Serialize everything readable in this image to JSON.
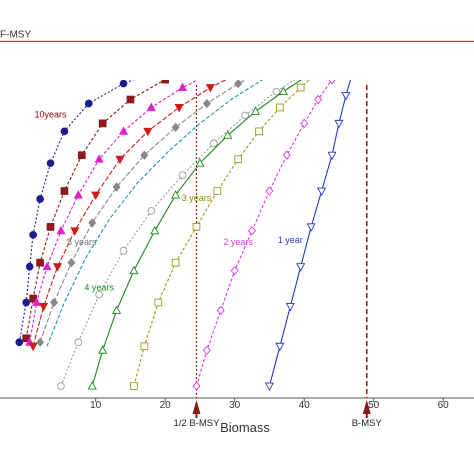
{
  "chart_data": {
    "type": "line",
    "xlabel": "Biomass",
    "ylabel": "",
    "xlim": [
      -2,
      64
    ],
    "xticks": [
      10,
      20,
      30,
      40,
      50,
      60
    ],
    "reference_lines": {
      "fmsy_label": "F-MSY",
      "half_bmsy_label": "1/2 B-MSY",
      "half_bmsy_x": 24.5,
      "bmsy_label": "B-MSY",
      "bmsy_x": 49
    },
    "annotations": [
      {
        "text": "10years",
        "x": 3.5,
        "y": 0.705,
        "color": "#8b0000"
      },
      {
        "text": "5 years",
        "x": 8.0,
        "y": 0.385,
        "color": "#777777"
      },
      {
        "text": "4 years",
        "x": 10.5,
        "y": 0.27,
        "color": "#1a8a1a"
      },
      {
        "text": "3 years",
        "x": 24.5,
        "y": 0.495,
        "color": "#8b8b00"
      },
      {
        "text": "2 years",
        "x": 30.5,
        "y": 0.385,
        "color": "#e233e2"
      },
      {
        "text": "1 year",
        "x": 38.0,
        "y": 0.39,
        "color": "#2a36cc"
      }
    ],
    "series": [
      {
        "color": "#1c1c8c",
        "marker": "circle-filled",
        "dash": "2,2",
        "x": [
          -1,
          0,
          0.5,
          1,
          2,
          3.5,
          5.5,
          9,
          14,
          20,
          26,
          32,
          37,
          41,
          44,
          46,
          47.5,
          48.5,
          49
        ],
        "y": [
          0.14,
          0.24,
          0.33,
          0.41,
          0.5,
          0.59,
          0.67,
          0.74,
          0.79,
          0.83,
          0.855,
          0.87,
          0.88,
          0.885,
          0.889,
          0.891,
          0.893,
          0.895,
          0.896
        ]
      },
      {
        "color": "#8b1a1a",
        "marker": "square-filled",
        "dash": "3,2",
        "x": [
          0,
          1,
          2,
          3.5,
          5.5,
          8,
          11,
          15,
          20,
          25,
          30,
          35,
          39,
          42.5,
          45,
          47,
          48.5,
          49
        ],
        "y": [
          0.15,
          0.25,
          0.34,
          0.43,
          0.52,
          0.61,
          0.69,
          0.75,
          0.8,
          0.83,
          0.855,
          0.87,
          0.88,
          0.885,
          0.889,
          0.892,
          0.895,
          0.896
        ]
      },
      {
        "color": "#e020c8",
        "marker": "triangle-up-filled",
        "dash": "3,2",
        "x": [
          0.5,
          1.5,
          3,
          5,
          7.5,
          10.5,
          14,
          18,
          22.5,
          27,
          31.5,
          36,
          40,
          43,
          45.5,
          47.5,
          49
        ],
        "y": [
          0.14,
          0.24,
          0.33,
          0.42,
          0.51,
          0.6,
          0.67,
          0.73,
          0.78,
          0.82,
          0.845,
          0.865,
          0.875,
          0.883,
          0.888,
          0.892,
          0.896
        ]
      },
      {
        "color": "#d11a1a",
        "marker": "triangle-down-filled",
        "dash": "5,2",
        "x": [
          1,
          2.5,
          4.5,
          7,
          10,
          13.5,
          17.5,
          22,
          26.5,
          31,
          35.5,
          39.5,
          43,
          45.5,
          47.5,
          49
        ],
        "y": [
          0.13,
          0.23,
          0.33,
          0.42,
          0.51,
          0.6,
          0.67,
          0.73,
          0.78,
          0.82,
          0.848,
          0.866,
          0.878,
          0.886,
          0.891,
          0.896
        ]
      },
      {
        "color": "#888888",
        "marker": "diamond-filled",
        "dash": "5,2",
        "x": [
          2,
          4,
          6.5,
          9.5,
          13,
          17,
          21.5,
          26,
          30.5,
          35,
          39,
          42.5,
          45.5,
          47.5,
          49
        ],
        "y": [
          0.14,
          0.24,
          0.34,
          0.44,
          0.53,
          0.61,
          0.68,
          0.74,
          0.79,
          0.83,
          0.855,
          0.872,
          0.883,
          0.89,
          0.896
        ]
      },
      {
        "color": "#1a9a9a",
        "marker": "none",
        "dash": "4,2",
        "x": [
          3,
          5.5,
          8.5,
          12,
          16,
          20.5,
          25,
          29.5,
          34,
          38,
          42,
          45,
          47.5,
          49
        ],
        "y": [
          0.13,
          0.24,
          0.35,
          0.45,
          0.54,
          0.62,
          0.69,
          0.75,
          0.8,
          0.835,
          0.86,
          0.878,
          0.89,
          0.896
        ]
      },
      {
        "color": "#999999",
        "marker": "circle-open",
        "dash": "2,2",
        "x": [
          5,
          7.5,
          10.5,
          14,
          18,
          22.5,
          27,
          31.5,
          36,
          40,
          43.5,
          46.5,
          49
        ],
        "y": [
          0.03,
          0.14,
          0.26,
          0.37,
          0.47,
          0.56,
          0.64,
          0.71,
          0.77,
          0.815,
          0.85,
          0.875,
          0.896
        ]
      },
      {
        "color": "#1a8a1a",
        "marker": "triangle-up-open",
        "dash": "",
        "x": [
          9.5,
          11,
          13,
          15.5,
          18.5,
          21.5,
          25,
          29,
          33,
          37,
          40.5,
          43.5,
          46,
          48,
          49
        ],
        "y": [
          0.03,
          0.12,
          0.22,
          0.32,
          0.42,
          0.51,
          0.59,
          0.66,
          0.72,
          0.77,
          0.81,
          0.84,
          0.865,
          0.885,
          0.896
        ]
      },
      {
        "color": "#9a9a1a",
        "marker": "square-open",
        "dash": "3,2",
        "x": [
          15.5,
          17,
          19,
          21.5,
          24.5,
          27.5,
          30.5,
          33.5,
          36.5,
          39.5,
          42,
          44.5,
          46.5,
          48,
          49
        ],
        "y": [
          0.03,
          0.13,
          0.24,
          0.34,
          0.43,
          0.52,
          0.6,
          0.67,
          0.73,
          0.78,
          0.82,
          0.85,
          0.87,
          0.885,
          0.896
        ]
      },
      {
        "color": "#e233e2",
        "marker": "diamond-open",
        "dash": "3,2",
        "x": [
          24.5,
          26,
          28,
          30,
          32.5,
          35,
          37.5,
          40,
          42,
          44,
          45.5,
          47,
          48,
          49
        ],
        "y": [
          0.03,
          0.12,
          0.22,
          0.32,
          0.42,
          0.52,
          0.61,
          0.69,
          0.75,
          0.8,
          0.84,
          0.87,
          0.885,
          0.896
        ]
      },
      {
        "color": "#2a36cc",
        "marker": "triangle-down-open",
        "dash": "",
        "x": [
          35,
          36.5,
          38,
          39.5,
          41,
          42.5,
          44,
          45,
          46,
          47,
          47.8,
          48.4,
          49
        ],
        "y": [
          0.03,
          0.13,
          0.23,
          0.33,
          0.43,
          0.52,
          0.61,
          0.69,
          0.76,
          0.82,
          0.86,
          0.88,
          0.896
        ]
      }
    ]
  }
}
